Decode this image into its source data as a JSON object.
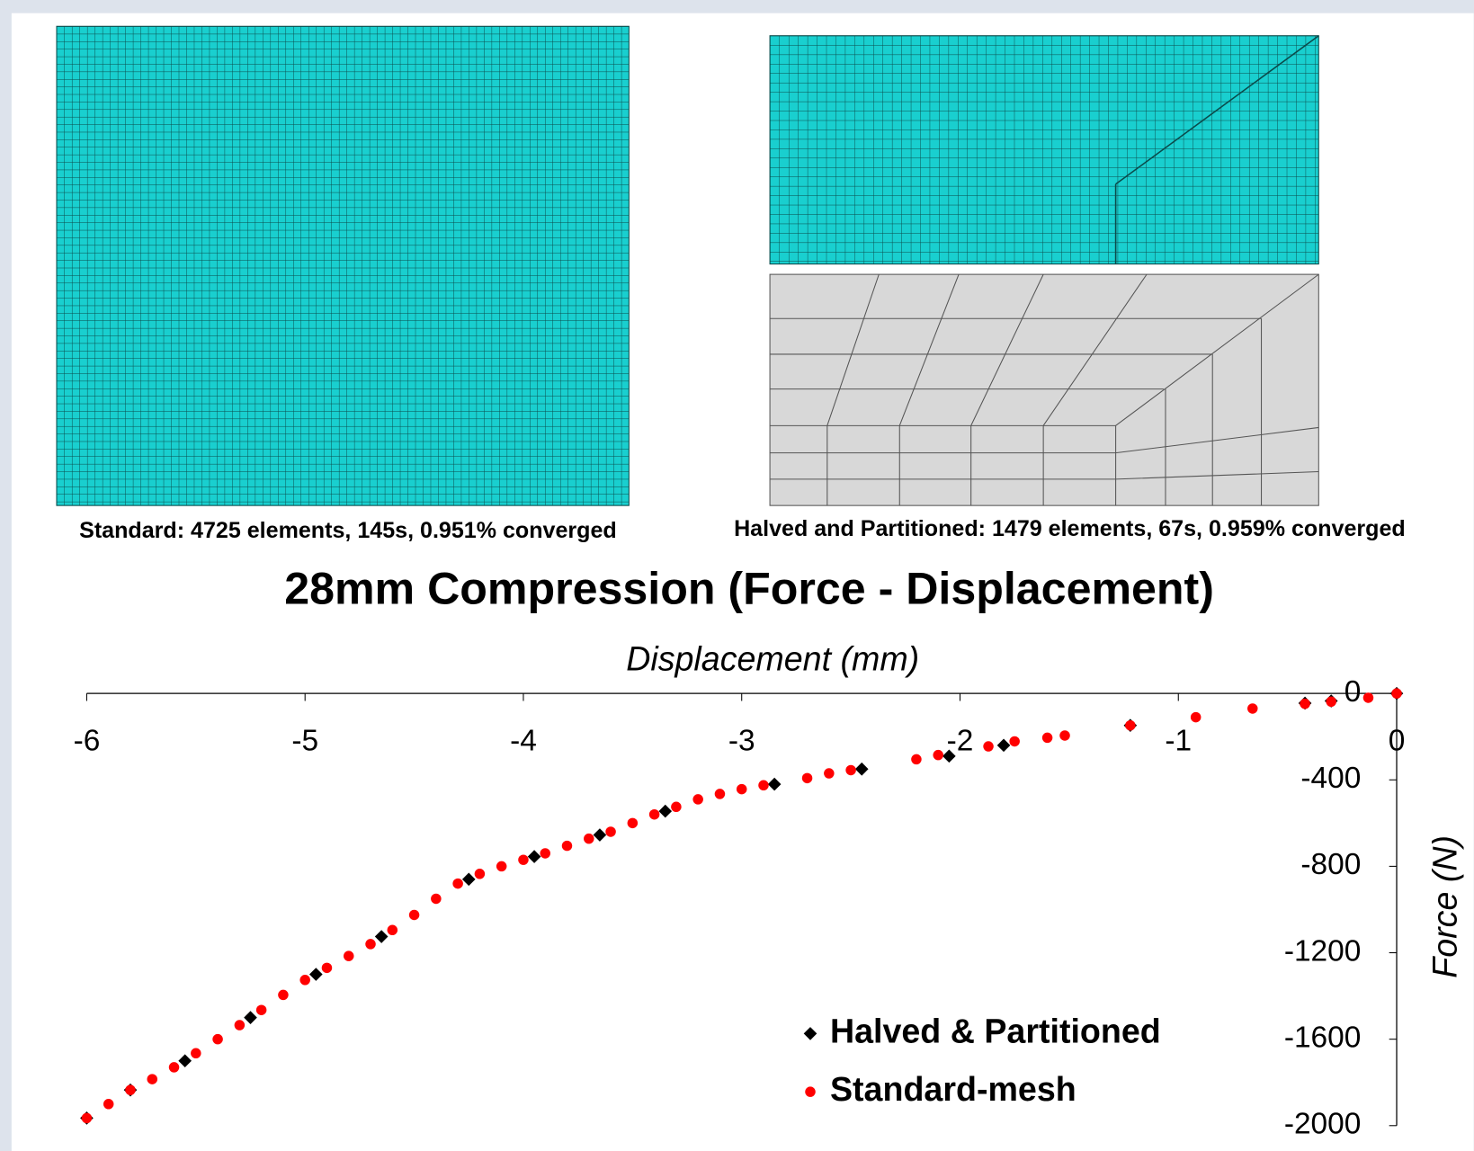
{
  "captions": [
    "Standard: 4725 elements, 145s, 0.951% converged",
    "Halved and Partitioned: 1479 elements, 67s, 0.959% converged"
  ],
  "chart_data": {
    "type": "scatter",
    "title": "28mm Compression (Force - Displacement)",
    "x_label": "Displacement (mm)",
    "y_label": "Force (N)",
    "xlim": [
      -6,
      0
    ],
    "ylim": [
      -2000,
      0
    ],
    "xticks": [
      -6,
      -5,
      -4,
      -3,
      -2,
      -1,
      0
    ],
    "yticks": [
      0,
      -400,
      -800,
      -1200,
      -1600,
      -2000
    ],
    "series": [
      {
        "name": "Halved & Partitioned",
        "color": "#000000",
        "marker": "diamond",
        "x": [
          0,
          -0.3,
          -0.42,
          -1.22,
          -1.8,
          -2.05,
          -2.45,
          -2.85,
          -3.35,
          -3.65,
          -3.95,
          -4.25,
          -4.65,
          -4.95,
          -5.25,
          -5.55,
          -5.8,
          -6.0
        ],
        "values": [
          0,
          -35,
          -45,
          -148,
          -240,
          -290,
          -350,
          -420,
          -545,
          -655,
          -755,
          -860,
          -1125,
          -1300,
          -1500,
          -1700,
          -1835,
          -1965
        ]
      },
      {
        "name": "Standard-mesh",
        "color": "#ff0000",
        "marker": "circle",
        "x": [
          0,
          -0.13,
          -0.3,
          -0.42,
          -0.66,
          -0.92,
          -1.22,
          -1.52,
          -1.6,
          -1.75,
          -1.87,
          -2.1,
          -2.2,
          -2.5,
          -2.6,
          -2.7,
          -2.9,
          -3.0,
          -3.1,
          -3.2,
          -3.3,
          -3.4,
          -3.5,
          -3.6,
          -3.7,
          -3.8,
          -3.9,
          -4.0,
          -4.1,
          -4.2,
          -4.3,
          -4.4,
          -4.5,
          -4.6,
          -4.7,
          -4.8,
          -4.9,
          -5.0,
          -5.1,
          -5.2,
          -5.3,
          -5.4,
          -5.5,
          -5.6,
          -5.7,
          -5.8,
          -5.9,
          -6.0
        ],
        "values": [
          0,
          -20,
          -38,
          -48,
          -70,
          -110,
          -148,
          -195,
          -205,
          -222,
          -245,
          -285,
          -305,
          -355,
          -370,
          -392,
          -425,
          -443,
          -465,
          -490,
          -525,
          -560,
          -600,
          -640,
          -672,
          -705,
          -740,
          -770,
          -800,
          -835,
          -880,
          -950,
          -1025,
          -1095,
          -1160,
          -1215,
          -1270,
          -1326,
          -1395,
          -1465,
          -1535,
          -1600,
          -1665,
          -1730,
          -1785,
          -1835,
          -1900,
          -1965
        ]
      }
    ]
  }
}
